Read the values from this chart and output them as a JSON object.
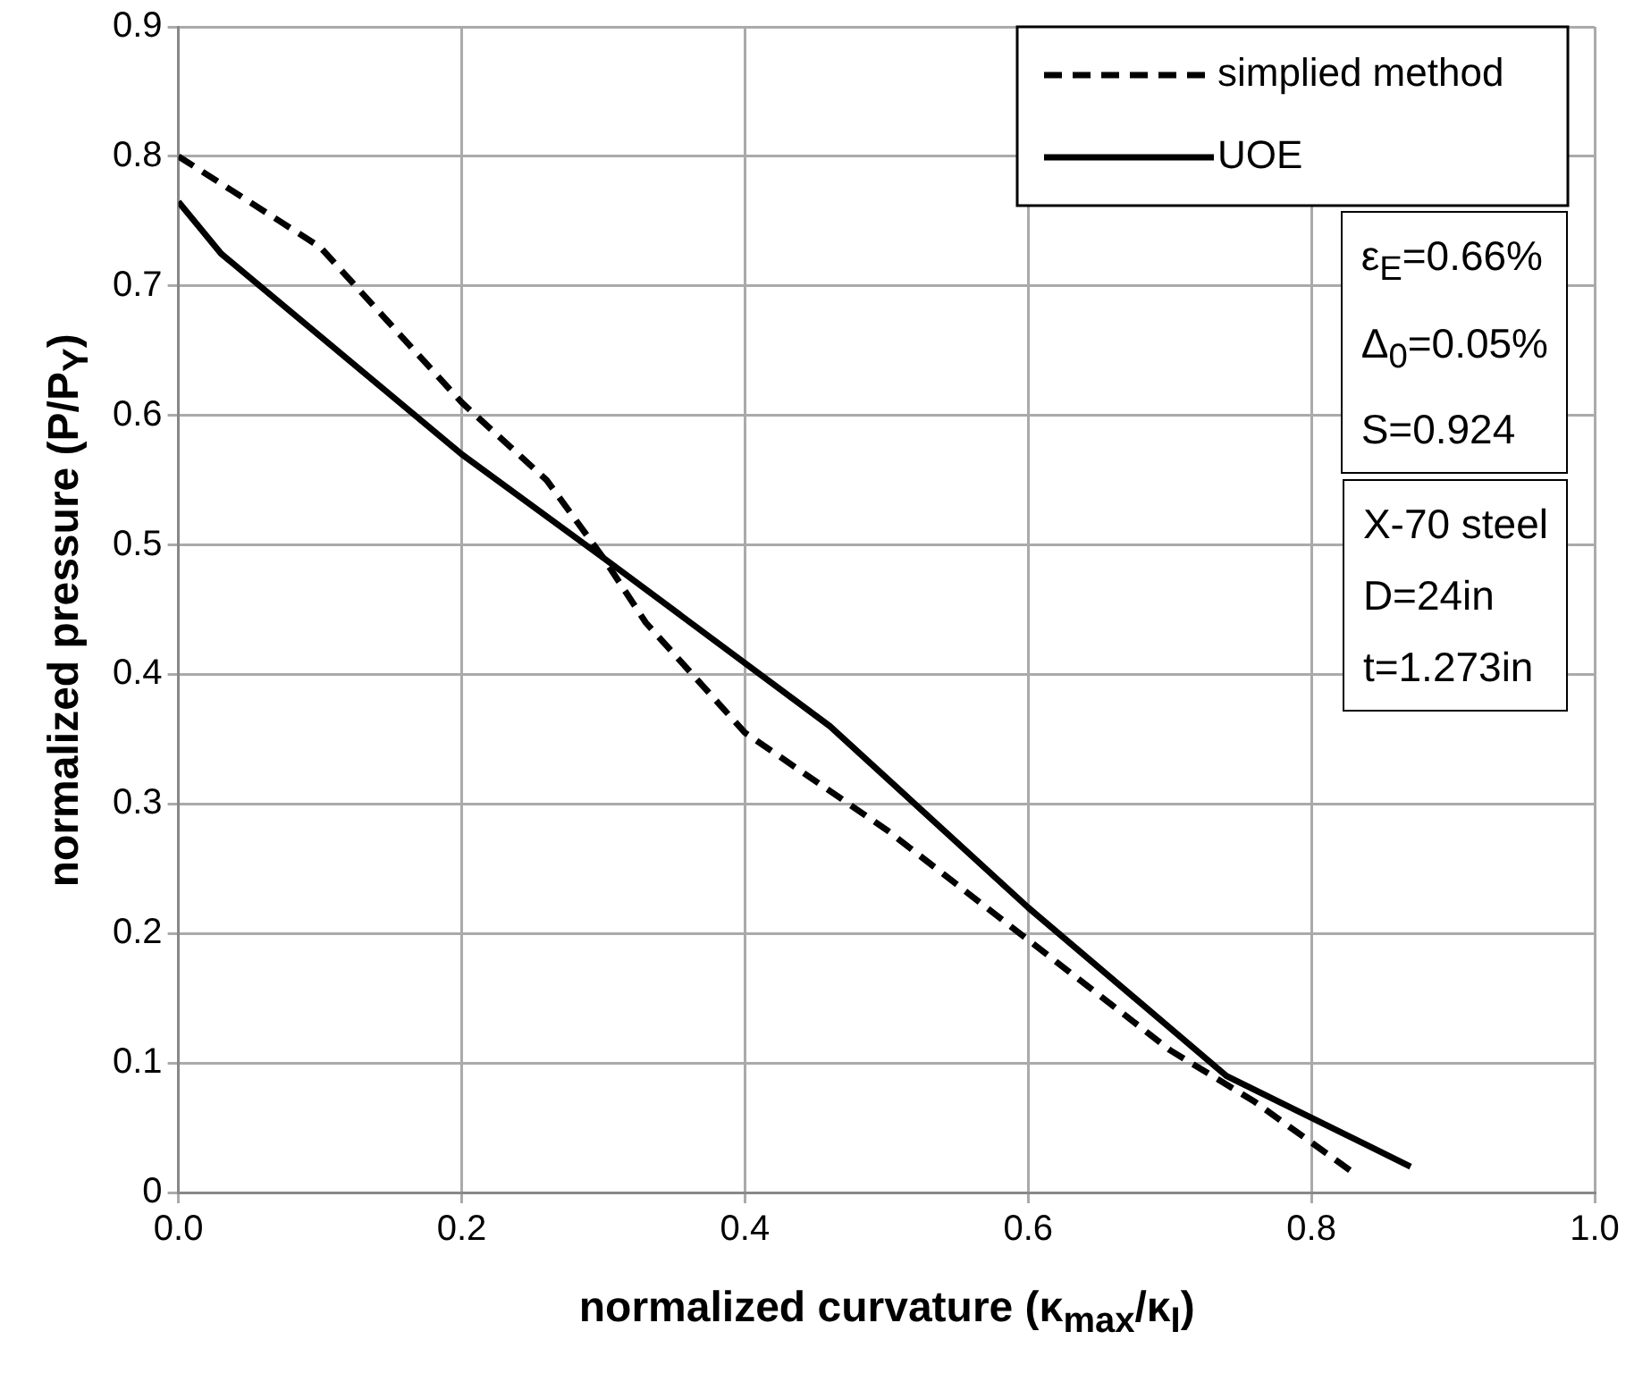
{
  "chart_data": {
    "type": "line",
    "xlabel": "normalized curvature (κ$_{max}$/κ$_{I}$)",
    "ylabel": "normalized pressure (P/P$_{Y}$)",
    "xlim": [
      0,
      1
    ],
    "xticks": [
      {
        "value": 0,
        "label": "0.0"
      },
      {
        "value": 0.2,
        "label": "0.2"
      },
      {
        "value": 0.4,
        "label": "0.4"
      },
      {
        "value": 0.6,
        "label": "0.6"
      },
      {
        "value": 0.8,
        "label": "0.8"
      },
      {
        "value": 1,
        "label": "1.0"
      }
    ],
    "ylim": [
      0,
      0.9
    ],
    "yticks": [
      0,
      0.1,
      0.2,
      0.3,
      0.4,
      0.5,
      0.6,
      0.7,
      0.8,
      0.9
    ],
    "grid": true,
    "legend": "top right",
    "marker": "none",
    "series": [
      {
        "name": "simplied method",
        "color": "#000000",
        "line_style": "dashed",
        "x": [
          0,
          0.1,
          0.2,
          0.26,
          0.3,
          0.33,
          0.4,
          0.5,
          0.6,
          0.7,
          0.76,
          0.83
        ],
        "values": [
          0.8,
          0.73,
          0.61,
          0.55,
          0.49,
          0.44,
          0.355,
          0.28,
          0.195,
          0.11,
          0.07,
          0.015
        ]
      },
      {
        "name": "UOE",
        "color": "#000000",
        "line_style": "solid",
        "x": [
          0,
          0.03,
          0.2,
          0.3,
          0.46,
          0.6,
          0.74,
          0.87
        ],
        "values": [
          0.765,
          0.725,
          0.57,
          0.49,
          0.36,
          0.22,
          0.09,
          0.02
        ]
      }
    ],
    "annotations": [
      "ε$_{E}$=0.66%",
      "Δ$_{0}$=0.05%",
      "S=0.924",
      "X-70  steel",
      "D=24in",
      "t=1.273in"
    ]
  }
}
